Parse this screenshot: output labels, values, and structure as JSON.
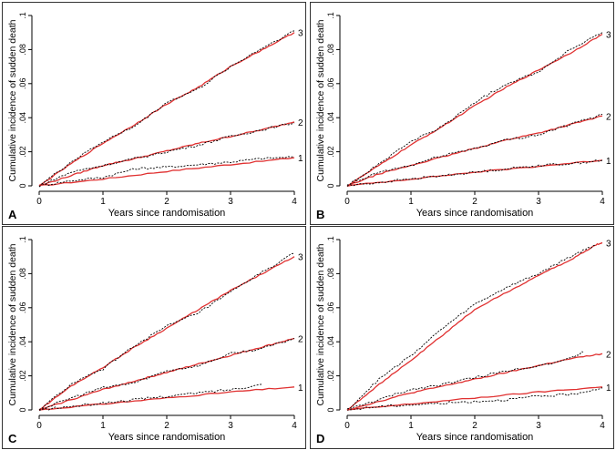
{
  "colors": {
    "model": "#e03030",
    "observed": "#000000",
    "frame": "#333333"
  },
  "chart_data": [
    {
      "type": "line",
      "panel": "A",
      "xlabel": "Years since randomisation",
      "ylabel": "Cumulative incidence of sudden death",
      "xlim": [
        0,
        4
      ],
      "ylim": [
        0,
        0.1
      ],
      "xticks": [
        "0",
        "1",
        "2",
        "3",
        "4"
      ],
      "yticks": [
        "0",
        ".02",
        ".04",
        ".06",
        ".08",
        ".1"
      ],
      "series": [
        {
          "name": "1",
          "style": "model",
          "x": [
            0,
            1,
            2,
            3,
            4
          ],
          "y": [
            0,
            0.004,
            0.0085,
            0.0125,
            0.0165
          ]
        },
        {
          "name": "1",
          "style": "observed",
          "x": [
            0,
            0.5,
            1,
            1.5,
            2,
            2.5,
            3,
            3.5,
            4
          ],
          "y": [
            0,
            0.003,
            0.005,
            0.01,
            0.011,
            0.0125,
            0.014,
            0.016,
            0.017
          ]
        },
        {
          "name": "2",
          "style": "model",
          "x": [
            0,
            0.5,
            1,
            1.5,
            2,
            2.5,
            3,
            3.5,
            4
          ],
          "y": [
            0,
            0.006,
            0.012,
            0.016,
            0.0205,
            0.025,
            0.029,
            0.033,
            0.0375
          ]
        },
        {
          "name": "2",
          "style": "observed",
          "x": [
            0,
            0.5,
            1,
            1.5,
            2,
            2.5,
            3,
            3.5,
            4
          ],
          "y": [
            0,
            0.008,
            0.012,
            0.016,
            0.02,
            0.024,
            0.029,
            0.033,
            0.037
          ]
        },
        {
          "name": "3",
          "style": "model",
          "x": [
            0,
            0.5,
            1,
            1.5,
            2,
            2.5,
            3,
            3.5,
            4
          ],
          "y": [
            0,
            0.013,
            0.025,
            0.036,
            0.048,
            0.058,
            0.07,
            0.08,
            0.09
          ]
        },
        {
          "name": "3",
          "style": "observed",
          "x": [
            0,
            0.5,
            1,
            1.5,
            2,
            2.5,
            3,
            3.5,
            4
          ],
          "y": [
            0,
            0.014,
            0.026,
            0.035,
            0.049,
            0.057,
            0.07,
            0.081,
            0.091
          ]
        }
      ],
      "curve_labels": [
        "1",
        "2",
        "3"
      ]
    },
    {
      "type": "line",
      "panel": "B",
      "xlabel": "Years since randomisation",
      "ylabel": "Cumulative incidence of sudden death",
      "xlim": [
        0,
        4
      ],
      "ylim": [
        0,
        0.1
      ],
      "xticks": [
        "0",
        "1",
        "2",
        "3",
        "4"
      ],
      "yticks": [
        "0",
        ".02",
        ".04",
        ".06",
        ".08",
        ".1"
      ],
      "series": [
        {
          "name": "1",
          "style": "model",
          "x": [
            0,
            1,
            2,
            3,
            4
          ],
          "y": [
            0,
            0.004,
            0.008,
            0.0115,
            0.015
          ]
        },
        {
          "name": "1",
          "style": "observed",
          "x": [
            0,
            0.5,
            1,
            1.5,
            2,
            2.5,
            3,
            3.5,
            4
          ],
          "y": [
            0,
            0.002,
            0.004,
            0.006,
            0.008,
            0.01,
            0.012,
            0.013,
            0.015
          ]
        },
        {
          "name": "2",
          "style": "model",
          "x": [
            0,
            0.5,
            1,
            1.5,
            2,
            2.5,
            3,
            3.5,
            4
          ],
          "y": [
            0,
            0.007,
            0.012,
            0.017,
            0.022,
            0.027,
            0.031,
            0.036,
            0.041
          ]
        },
        {
          "name": "2",
          "style": "observed",
          "x": [
            0,
            0.5,
            1,
            1.5,
            2,
            2.5,
            3,
            3.5,
            4
          ],
          "y": [
            0,
            0.008,
            0.012,
            0.018,
            0.022,
            0.027,
            0.03,
            0.036,
            0.042
          ]
        },
        {
          "name": "3",
          "style": "model",
          "x": [
            0,
            0.5,
            1,
            1.5,
            2,
            2.5,
            3,
            3.5,
            4
          ],
          "y": [
            0,
            0.012,
            0.024,
            0.035,
            0.047,
            0.058,
            0.068,
            0.078,
            0.089
          ]
        },
        {
          "name": "3",
          "style": "observed",
          "x": [
            0,
            0.5,
            1,
            1.5,
            2,
            2.5,
            3,
            3.5,
            4
          ],
          "y": [
            0,
            0.013,
            0.026,
            0.035,
            0.049,
            0.06,
            0.067,
            0.08,
            0.09
          ]
        }
      ],
      "curve_labels": [
        "1",
        "2",
        "3"
      ]
    },
    {
      "type": "line",
      "panel": "C",
      "xlabel": "Years since randomisation",
      "ylabel": "Cumulative incidence of sudden death",
      "xlim": [
        0,
        4
      ],
      "ylim": [
        0,
        0.1
      ],
      "xticks": [
        "0",
        "1",
        "2",
        "3",
        "4"
      ],
      "yticks": [
        "0",
        ".02",
        ".04",
        ".06",
        ".08",
        ".1"
      ],
      "series": [
        {
          "name": "1",
          "style": "model",
          "x": [
            0,
            1,
            2,
            3,
            4
          ],
          "y": [
            0,
            0.0035,
            0.007,
            0.0105,
            0.0135
          ]
        },
        {
          "name": "1",
          "style": "observed",
          "x": [
            0,
            0.5,
            1,
            1.5,
            2,
            2.5,
            3,
            3.5
          ],
          "y": [
            0,
            0.002,
            0.004,
            0.006,
            0.008,
            0.01,
            0.012,
            0.015
          ]
        },
        {
          "name": "2",
          "style": "model",
          "x": [
            0,
            0.5,
            1,
            1.5,
            2,
            2.5,
            3,
            3.5,
            4
          ],
          "y": [
            0,
            0.006,
            0.012,
            0.017,
            0.022,
            0.027,
            0.032,
            0.037,
            0.042
          ]
        },
        {
          "name": "2",
          "style": "observed",
          "x": [
            0,
            0.5,
            1,
            1.5,
            2,
            2.5,
            3,
            3.5,
            4
          ],
          "y": [
            0,
            0.007,
            0.013,
            0.016,
            0.023,
            0.026,
            0.033,
            0.036,
            0.042
          ]
        },
        {
          "name": "3",
          "style": "model",
          "x": [
            0,
            0.5,
            1,
            1.5,
            2,
            2.5,
            3,
            3.5,
            4
          ],
          "y": [
            0,
            0.014,
            0.025,
            0.037,
            0.048,
            0.059,
            0.07,
            0.08,
            0.09
          ]
        },
        {
          "name": "3",
          "style": "observed",
          "x": [
            0,
            0.5,
            1,
            1.5,
            2,
            2.5,
            3,
            3.5,
            4
          ],
          "y": [
            0,
            0.015,
            0.024,
            0.038,
            0.049,
            0.057,
            0.069,
            0.081,
            0.092
          ]
        }
      ],
      "curve_labels": [
        "1",
        "2",
        "3"
      ]
    },
    {
      "type": "line",
      "panel": "D",
      "xlabel": "Years since randomisation",
      "ylabel": "Cumulative incidence of sudden death",
      "xlim": [
        0,
        4
      ],
      "ylim": [
        0,
        0.1
      ],
      "xticks": [
        "0",
        "1",
        "2",
        "3",
        "4"
      ],
      "yticks": [
        "0",
        ".02",
        ".04",
        ".06",
        ".08",
        ".1"
      ],
      "series": [
        {
          "name": "1",
          "style": "model",
          "x": [
            0,
            1,
            2,
            3,
            4
          ],
          "y": [
            0,
            0.0035,
            0.007,
            0.0105,
            0.0135
          ]
        },
        {
          "name": "1",
          "style": "observed",
          "x": [
            0,
            0.5,
            1,
            1.5,
            2,
            2.5,
            3,
            3.5,
            4
          ],
          "y": [
            0,
            0.002,
            0.003,
            0.004,
            0.005,
            0.006,
            0.008,
            0.009,
            0.013
          ]
        },
        {
          "name": "2",
          "style": "model",
          "x": [
            0,
            0.5,
            1,
            1.5,
            2,
            2.5,
            3,
            3.5,
            4
          ],
          "y": [
            0,
            0.005,
            0.01,
            0.014,
            0.018,
            0.022,
            0.026,
            0.03,
            0.033
          ]
        },
        {
          "name": "2",
          "style": "observed",
          "x": [
            0,
            0.5,
            1,
            1.5,
            2,
            2.5,
            3,
            3.5,
            3.7
          ],
          "y": [
            0,
            0.006,
            0.012,
            0.015,
            0.019,
            0.023,
            0.026,
            0.03,
            0.034
          ]
        },
        {
          "name": "3",
          "style": "model",
          "x": [
            0,
            0.5,
            1,
            1.5,
            2,
            2.5,
            3,
            3.5,
            3.9,
            4
          ],
          "y": [
            0,
            0.015,
            0.029,
            0.044,
            0.059,
            0.069,
            0.079,
            0.088,
            0.097,
            0.098
          ]
        },
        {
          "name": "3",
          "style": "observed",
          "x": [
            0,
            0.5,
            1,
            1.5,
            2,
            2.5,
            3,
            3.5,
            3.9
          ],
          "y": [
            0,
            0.018,
            0.032,
            0.048,
            0.062,
            0.072,
            0.08,
            0.09,
            0.097
          ]
        }
      ],
      "curve_labels": [
        "1",
        "2",
        "3"
      ]
    }
  ]
}
